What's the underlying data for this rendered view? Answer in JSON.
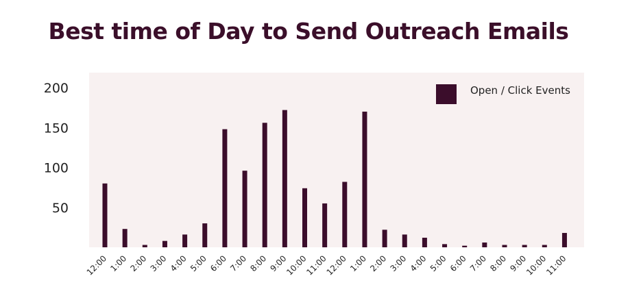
{
  "colors": {
    "bar": "#3b0d2b",
    "plot_background": "#f8f1f1",
    "title": "#3b0f2a",
    "text": "#222222"
  },
  "chart_data": {
    "type": "bar",
    "title": "Best time of Day  to Send Outreach Emails",
    "xlabel": "",
    "ylabel": "",
    "ylim": [
      0,
      200
    ],
    "yticks": [
      50,
      100,
      150,
      200
    ],
    "grid": false,
    "legend_position": "top-right",
    "categories": [
      "12:00",
      "1:00",
      "2:00",
      "3:00",
      "4:00",
      "5:00",
      "6:00",
      "7:00",
      "8:00",
      "9:00",
      "10:00",
      "11:00",
      "12:00",
      "1:00",
      "2:00",
      "3:00",
      "4:00",
      "5:00",
      "6:00",
      "7:00",
      "8:00",
      "9:00",
      "10:00",
      "11:00"
    ],
    "series": [
      {
        "name": "Open / Click Events",
        "values": [
          80,
          23,
          3,
          8,
          16,
          30,
          148,
          96,
          156,
          172,
          74,
          55,
          82,
          170,
          22,
          16,
          12,
          4,
          2,
          6,
          3,
          3,
          3,
          18
        ]
      }
    ]
  }
}
